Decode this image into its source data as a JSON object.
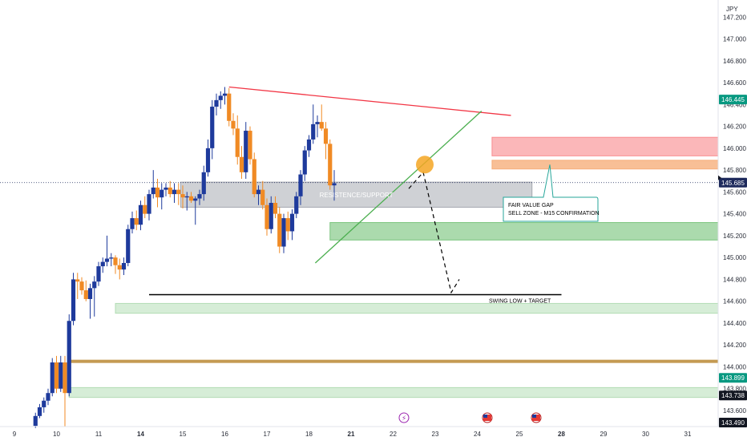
{
  "chart_data": {
    "type": "candlestick",
    "currency_label": "JPY",
    "ylim": [
      143.49,
      147.39
    ],
    "y_ticks": [
      "147.200",
      "147.000",
      "146.800",
      "146.600",
      "146.400",
      "146.200",
      "146.000",
      "145.800",
      "145.600",
      "145.400",
      "145.200",
      "145.000",
      "144.800",
      "144.600",
      "144.400",
      "144.200",
      "144.000",
      "143.800",
      "143.600"
    ],
    "x_ticks": [
      {
        "label": "9",
        "d": 9,
        "bold": false
      },
      {
        "label": "10",
        "d": 10,
        "bold": false
      },
      {
        "label": "11",
        "d": 11,
        "bold": false
      },
      {
        "label": "14",
        "d": 12,
        "bold": true
      },
      {
        "label": "15",
        "d": 13,
        "bold": false
      },
      {
        "label": "16",
        "d": 14,
        "bold": false
      },
      {
        "label": "17",
        "d": 15,
        "bold": false
      },
      {
        "label": "18",
        "d": 16,
        "bold": false
      },
      {
        "label": "21",
        "d": 17,
        "bold": true
      },
      {
        "label": "22",
        "d": 18,
        "bold": false
      },
      {
        "label": "23",
        "d": 19,
        "bold": false
      },
      {
        "label": "24",
        "d": 20,
        "bold": false
      },
      {
        "label": "25",
        "d": 21,
        "bold": false
      },
      {
        "label": "28",
        "d": 22,
        "bold": true
      },
      {
        "label": "29",
        "d": 23,
        "bold": false
      },
      {
        "label": "30",
        "d": 24,
        "bold": false
      },
      {
        "label": "31",
        "d": 25,
        "bold": false
      }
    ],
    "candles": [
      {
        "t": 9.5,
        "o": 143.46,
        "h": 143.58,
        "l": 143.44,
        "c": 143.55
      },
      {
        "t": 9.6,
        "o": 143.55,
        "h": 143.66,
        "l": 143.53,
        "c": 143.63
      },
      {
        "t": 9.7,
        "o": 143.63,
        "h": 143.72,
        "l": 143.58,
        "c": 143.69
      },
      {
        "t": 9.8,
        "o": 143.69,
        "h": 143.8,
        "l": 143.65,
        "c": 143.76
      },
      {
        "t": 9.9,
        "o": 143.76,
        "h": 144.08,
        "l": 143.73,
        "c": 144.04
      },
      {
        "t": 10.0,
        "o": 144.04,
        "h": 144.1,
        "l": 143.76,
        "c": 143.8
      },
      {
        "t": 10.1,
        "o": 143.8,
        "h": 144.1,
        "l": 143.77,
        "c": 144.04
      },
      {
        "t": 10.2,
        "o": 144.04,
        "h": 144.1,
        "l": 143.45,
        "c": 143.76
      },
      {
        "t": 10.3,
        "o": 143.76,
        "h": 144.48,
        "l": 143.73,
        "c": 144.42
      },
      {
        "t": 10.4,
        "o": 144.42,
        "h": 144.86,
        "l": 144.38,
        "c": 144.8
      },
      {
        "t": 10.5,
        "o": 144.8,
        "h": 144.86,
        "l": 144.62,
        "c": 144.78
      },
      {
        "t": 10.6,
        "o": 144.78,
        "h": 144.82,
        "l": 144.66,
        "c": 144.7
      },
      {
        "t": 10.7,
        "o": 144.7,
        "h": 144.79,
        "l": 144.6,
        "c": 144.62
      },
      {
        "t": 10.8,
        "o": 144.62,
        "h": 144.76,
        "l": 144.44,
        "c": 144.72
      },
      {
        "t": 10.9,
        "o": 144.72,
        "h": 144.83,
        "l": 144.46,
        "c": 144.78
      },
      {
        "t": 11.0,
        "o": 144.78,
        "h": 144.96,
        "l": 144.74,
        "c": 144.92
      },
      {
        "t": 11.1,
        "o": 144.92,
        "h": 145.0,
        "l": 144.86,
        "c": 144.96
      },
      {
        "t": 11.2,
        "o": 144.96,
        "h": 145.2,
        "l": 144.92,
        "c": 144.99
      },
      {
        "t": 11.3,
        "o": 144.99,
        "h": 145.04,
        "l": 144.92,
        "c": 145.0
      },
      {
        "t": 11.4,
        "o": 145.0,
        "h": 145.02,
        "l": 144.85,
        "c": 144.93
      },
      {
        "t": 11.5,
        "o": 144.93,
        "h": 144.99,
        "l": 144.8,
        "c": 144.89
      },
      {
        "t": 11.6,
        "o": 144.89,
        "h": 145.0,
        "l": 144.84,
        "c": 144.95
      },
      {
        "t": 11.7,
        "o": 144.95,
        "h": 145.3,
        "l": 144.92,
        "c": 145.26
      },
      {
        "t": 11.8,
        "o": 145.26,
        "h": 145.42,
        "l": 145.22,
        "c": 145.36
      },
      {
        "t": 11.9,
        "o": 145.36,
        "h": 145.43,
        "l": 145.25,
        "c": 145.3
      },
      {
        "t": 12.0,
        "o": 145.3,
        "h": 145.52,
        "l": 145.25,
        "c": 145.48
      },
      {
        "t": 12.1,
        "o": 145.48,
        "h": 145.56,
        "l": 145.36,
        "c": 145.4
      },
      {
        "t": 12.2,
        "o": 145.4,
        "h": 145.62,
        "l": 145.34,
        "c": 145.58
      },
      {
        "t": 12.3,
        "o": 145.58,
        "h": 145.8,
        "l": 145.54,
        "c": 145.64
      },
      {
        "t": 12.4,
        "o": 145.64,
        "h": 145.72,
        "l": 145.46,
        "c": 145.55
      },
      {
        "t": 12.5,
        "o": 145.55,
        "h": 145.68,
        "l": 145.44,
        "c": 145.62
      },
      {
        "t": 12.6,
        "o": 145.62,
        "h": 145.68,
        "l": 145.56,
        "c": 145.64
      },
      {
        "t": 12.7,
        "o": 145.64,
        "h": 145.7,
        "l": 145.55,
        "c": 145.58
      },
      {
        "t": 12.8,
        "o": 145.58,
        "h": 145.68,
        "l": 145.5,
        "c": 145.62
      },
      {
        "t": 12.9,
        "o": 145.62,
        "h": 145.68,
        "l": 145.48,
        "c": 145.58
      },
      {
        "t": 13.0,
        "o": 145.58,
        "h": 145.66,
        "l": 145.45,
        "c": 145.55
      },
      {
        "t": 13.1,
        "o": 145.55,
        "h": 145.6,
        "l": 145.43,
        "c": 145.56
      },
      {
        "t": 13.2,
        "o": 145.56,
        "h": 145.6,
        "l": 145.5,
        "c": 145.52
      },
      {
        "t": 13.3,
        "o": 145.52,
        "h": 145.56,
        "l": 145.3,
        "c": 145.54
      },
      {
        "t": 13.4,
        "o": 145.54,
        "h": 145.62,
        "l": 145.48,
        "c": 145.58
      },
      {
        "t": 13.5,
        "o": 145.58,
        "h": 145.84,
        "l": 145.52,
        "c": 145.78
      },
      {
        "t": 13.6,
        "o": 145.78,
        "h": 146.08,
        "l": 145.74,
        "c": 146.0
      },
      {
        "t": 13.7,
        "o": 146.0,
        "h": 146.44,
        "l": 145.9,
        "c": 146.38
      },
      {
        "t": 13.8,
        "o": 146.38,
        "h": 146.5,
        "l": 146.3,
        "c": 146.44
      },
      {
        "t": 13.9,
        "o": 146.44,
        "h": 146.52,
        "l": 146.36,
        "c": 146.48
      },
      {
        "t": 14.0,
        "o": 146.48,
        "h": 146.56,
        "l": 146.4,
        "c": 146.5
      },
      {
        "t": 14.1,
        "o": 146.5,
        "h": 146.55,
        "l": 146.2,
        "c": 146.25
      },
      {
        "t": 14.2,
        "o": 146.25,
        "h": 146.32,
        "l": 146.12,
        "c": 146.18
      },
      {
        "t": 14.3,
        "o": 146.18,
        "h": 146.3,
        "l": 145.85,
        "c": 145.92
      },
      {
        "t": 14.4,
        "o": 145.92,
        "h": 146.02,
        "l": 145.72,
        "c": 145.78
      },
      {
        "t": 14.5,
        "o": 145.78,
        "h": 146.24,
        "l": 145.72,
        "c": 146.16
      },
      {
        "t": 14.6,
        "o": 146.16,
        "h": 146.2,
        "l": 145.85,
        "c": 145.9
      },
      {
        "t": 14.7,
        "o": 145.9,
        "h": 145.96,
        "l": 145.55,
        "c": 145.58
      },
      {
        "t": 14.8,
        "o": 145.58,
        "h": 145.66,
        "l": 145.48,
        "c": 145.62
      },
      {
        "t": 14.9,
        "o": 145.62,
        "h": 145.7,
        "l": 145.44,
        "c": 145.48
      },
      {
        "t": 15.0,
        "o": 145.48,
        "h": 145.54,
        "l": 145.2,
        "c": 145.26
      },
      {
        "t": 15.1,
        "o": 145.26,
        "h": 145.56,
        "l": 145.22,
        "c": 145.5
      },
      {
        "t": 15.2,
        "o": 145.5,
        "h": 145.56,
        "l": 145.36,
        "c": 145.4
      },
      {
        "t": 15.3,
        "o": 145.4,
        "h": 145.46,
        "l": 145.04,
        "c": 145.1
      },
      {
        "t": 15.4,
        "o": 145.1,
        "h": 145.4,
        "l": 145.04,
        "c": 145.36
      },
      {
        "t": 15.5,
        "o": 145.36,
        "h": 145.42,
        "l": 145.16,
        "c": 145.24
      },
      {
        "t": 15.6,
        "o": 145.24,
        "h": 145.44,
        "l": 145.16,
        "c": 145.4
      },
      {
        "t": 15.7,
        "o": 145.4,
        "h": 145.6,
        "l": 145.36,
        "c": 145.56
      },
      {
        "t": 15.8,
        "o": 145.56,
        "h": 145.8,
        "l": 145.48,
        "c": 145.76
      },
      {
        "t": 15.9,
        "o": 145.76,
        "h": 146.02,
        "l": 145.7,
        "c": 145.98
      },
      {
        "t": 16.0,
        "o": 145.98,
        "h": 146.12,
        "l": 145.92,
        "c": 146.08
      },
      {
        "t": 16.1,
        "o": 146.08,
        "h": 146.4,
        "l": 146.04,
        "c": 146.22
      },
      {
        "t": 16.2,
        "o": 146.22,
        "h": 146.3,
        "l": 146.1,
        "c": 146.24
      },
      {
        "t": 16.3,
        "o": 146.24,
        "h": 146.4,
        "l": 146.16,
        "c": 146.18
      },
      {
        "t": 16.4,
        "o": 146.18,
        "h": 146.24,
        "l": 145.9,
        "c": 146.04
      },
      {
        "t": 16.5,
        "o": 146.04,
        "h": 146.08,
        "l": 145.62,
        "c": 145.66
      },
      {
        "t": 16.6,
        "o": 145.66,
        "h": 145.8,
        "l": 145.52,
        "c": 145.68
      }
    ],
    "lines": [
      {
        "name": "resistance-trendline",
        "color": "#f23645",
        "x1": 14.1,
        "y1": 146.56,
        "x2": 20.8,
        "y2": 146.3
      },
      {
        "name": "support-trendline",
        "color": "#4caf50",
        "x1": 16.15,
        "y1": 144.95,
        "x2": 20.1,
        "y2": 146.34
      },
      {
        "name": "swing-low-line",
        "color": "#000000",
        "x1": 12.2,
        "y1": 144.66,
        "x2": 22.0,
        "y2": 144.66
      }
    ],
    "zones": [
      {
        "name": "resistance-support-zone",
        "fill": "#9598a1",
        "opacity": 0.45,
        "x1": 12.95,
        "x2": 21.3,
        "y1": 145.46,
        "y2": 145.69
      },
      {
        "name": "sell-zone-upper",
        "fill": "#f77c80",
        "opacity": 0.55,
        "x1": 20.35,
        "x2": 25.95,
        "y1": 145.93,
        "y2": 146.1
      },
      {
        "name": "fair-value-gap-zone",
        "fill": "#f5a46a",
        "opacity": 0.7,
        "x1": 20.35,
        "x2": 25.95,
        "y1": 145.81,
        "y2": 145.89
      },
      {
        "name": "demand-zone",
        "fill": "#66bb6a",
        "opacity": 0.55,
        "x1": 16.5,
        "x2": 25.95,
        "y1": 145.16,
        "y2": 145.32
      },
      {
        "name": "target-zone",
        "fill": "#a5d6a7",
        "opacity": 0.45,
        "x1": 11.4,
        "x2": 25.95,
        "y1": 144.49,
        "y2": 144.58
      },
      {
        "name": "lower-zone",
        "fill": "#a5d6a7",
        "opacity": 0.45,
        "x1": 10.3,
        "x2": 25.95,
        "y1": 143.72,
        "y2": 143.81
      }
    ],
    "horizontal_levels": [
      {
        "name": "brown-level",
        "color": "#c49a52",
        "price": 144.05,
        "x1": 10.3
      }
    ],
    "annotations": {
      "resistance_support": "RESISTENCE/SUPPORT",
      "fvg_line1": "FAIR VALUE GAP",
      "fvg_line2": "SELL ZONE - M15 CONFIRMATION",
      "swing_low": "SWING LOW + TARGET"
    },
    "price_labels": [
      {
        "text": "146.445",
        "bg": "#089981",
        "price": 146.445
      },
      {
        "text": "145.685",
        "bg": "#1e2a5c",
        "price": 145.685
      },
      {
        "text": "143.899",
        "bg": "#089981",
        "price": 143.899
      },
      {
        "text": "143.738",
        "bg": "#131722",
        "price": 143.738
      },
      {
        "text": "143.490",
        "bg": "#131722",
        "price": 143.49
      }
    ],
    "current_price": 145.685,
    "colors": {
      "up": "#1e3a9c",
      "down": "#f08a24",
      "grid": "#ffffff"
    }
  }
}
